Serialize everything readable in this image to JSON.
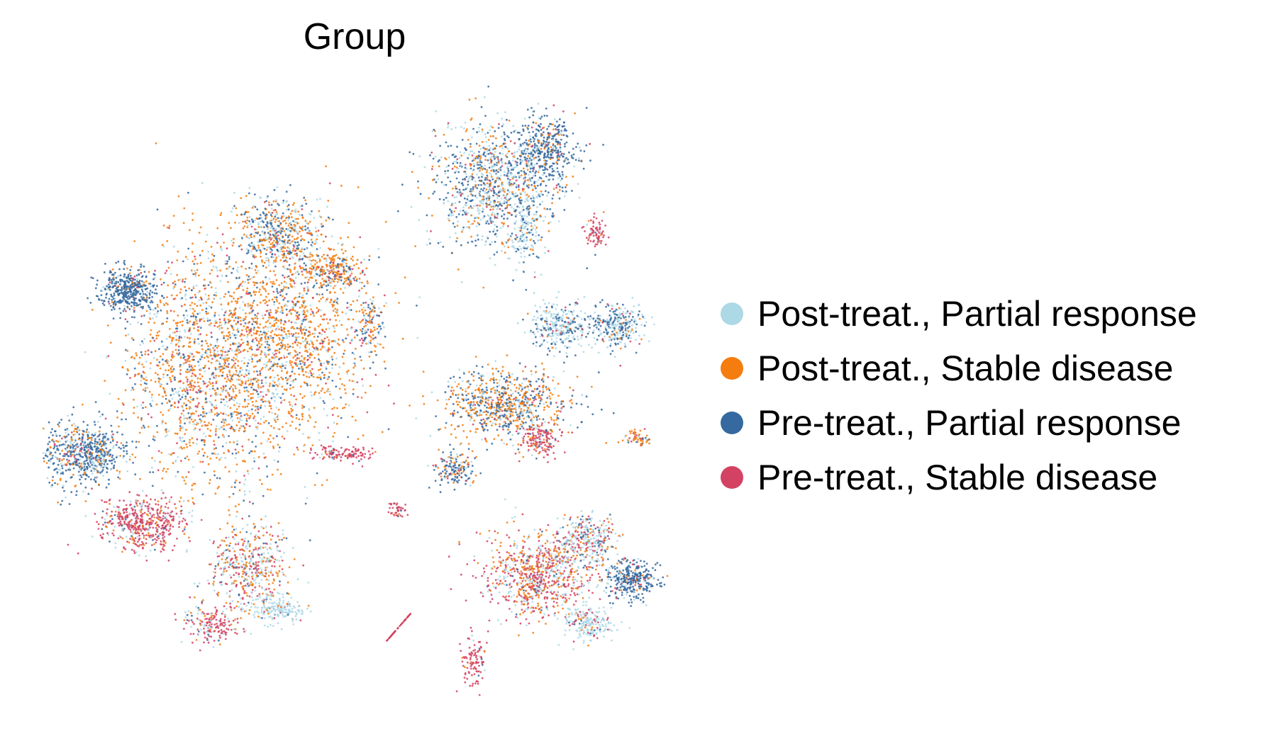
{
  "chart_data": {
    "type": "scatter",
    "title": "Group",
    "xlabel": "",
    "ylabel": "",
    "axes_visible": false,
    "grid": false,
    "legend_position": "right",
    "series": [
      {
        "name": "Post-treat., Partial response",
        "color": "#add8e6"
      },
      {
        "name": "Post-treat., Stable disease",
        "color": "#f57c0e"
      },
      {
        "name": "Pre-treat., Partial response",
        "color": "#35699f"
      },
      {
        "name": "Pre-treat., Stable disease",
        "color": "#d34262"
      }
    ]
  }
}
